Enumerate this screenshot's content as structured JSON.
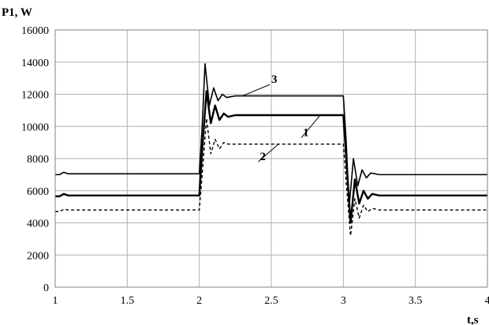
{
  "chart_data": {
    "type": "line",
    "ylabel": "P1, W",
    "xlabel": "t,s",
    "xlim": [
      1,
      4
    ],
    "ylim": [
      0,
      16000
    ],
    "x_ticks": [
      "1",
      "1.5",
      "2",
      "2.5",
      "3",
      "3.5",
      "4"
    ],
    "y_ticks": [
      "0",
      "2000",
      "4000",
      "6000",
      "8000",
      "10000",
      "12000",
      "14000",
      "16000"
    ],
    "grid": true,
    "series": [
      {
        "name": "1",
        "style": "solid-thick",
        "x": [
          1.0,
          1.03,
          1.06,
          1.09,
          1.12,
          2.0,
          2.02,
          2.05,
          2.08,
          2.11,
          2.14,
          2.17,
          2.2,
          2.25,
          3.0,
          3.02,
          3.05,
          3.08,
          3.11,
          3.14,
          3.17,
          3.2,
          3.25,
          4.0
        ],
        "y": [
          5650,
          5650,
          5800,
          5700,
          5700,
          5700,
          8500,
          12200,
          10200,
          11300,
          10400,
          10800,
          10600,
          10700,
          10700,
          8000,
          4000,
          6700,
          5200,
          6000,
          5500,
          5800,
          5700,
          5700
        ]
      },
      {
        "name": "2",
        "style": "dashed",
        "x": [
          1.0,
          1.03,
          1.06,
          1.09,
          1.12,
          2.0,
          2.02,
          2.05,
          2.08,
          2.11,
          2.14,
          2.17,
          2.2,
          2.25,
          3.0,
          3.02,
          3.05,
          3.08,
          3.11,
          3.14,
          3.17,
          3.2,
          3.25,
          4.0
        ],
        "y": [
          4700,
          4700,
          4850,
          4800,
          4800,
          4800,
          7000,
          10500,
          8300,
          9200,
          8600,
          9000,
          8900,
          8900,
          8900,
          6500,
          3200,
          5500,
          4300,
          5100,
          4700,
          4900,
          4800,
          4800
        ]
      },
      {
        "name": "3",
        "style": "solid",
        "x": [
          1.0,
          1.03,
          1.06,
          1.09,
          1.12,
          2.0,
          2.02,
          2.04,
          2.07,
          2.1,
          2.13,
          2.16,
          2.19,
          2.25,
          3.0,
          3.02,
          3.04,
          3.07,
          3.1,
          3.13,
          3.16,
          3.19,
          3.25,
          4.0
        ],
        "y": [
          7000,
          7000,
          7150,
          7050,
          7050,
          7050,
          10000,
          13900,
          11300,
          12400,
          11600,
          12000,
          11800,
          11900,
          11900,
          9000,
          5000,
          8000,
          6300,
          7300,
          6800,
          7100,
          7000,
          7000
        ]
      }
    ],
    "annotations": [
      {
        "text": "3",
        "series": "3",
        "x": 2.5,
        "y": 12700
      },
      {
        "text": "1",
        "series": "1",
        "x": 2.72,
        "y": 9400
      },
      {
        "text": "2",
        "series": "2",
        "x": 2.42,
        "y": 7900
      }
    ]
  }
}
